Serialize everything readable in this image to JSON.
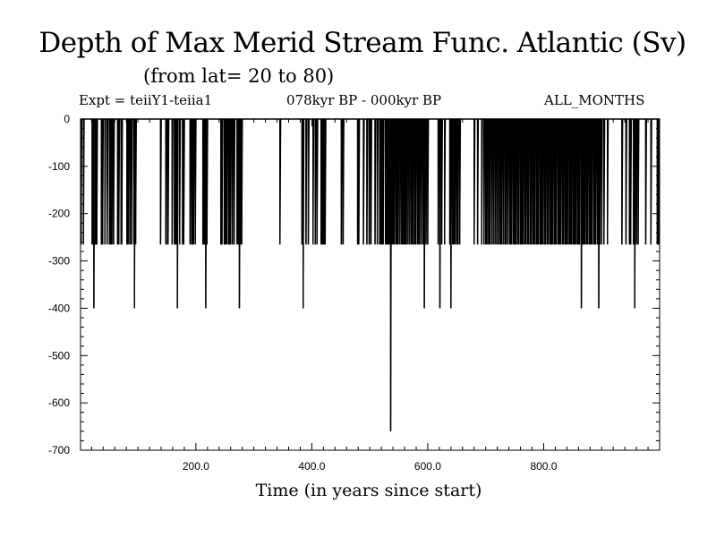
{
  "header": {
    "title": "Depth of Max Merid Stream Func. Atlantic (Sv)",
    "subtitle": "(from lat= 20 to 80)",
    "experiment": "Expt = teiiY1-teiia1",
    "period": "078kyr BP - 000kyr BP",
    "months": "ALL_MONTHS"
  },
  "chart_data": {
    "type": "line",
    "title": "Depth of Max Merid Stream Func. Atlantic (Sv)",
    "xlabel": "Time (in years since start)",
    "ylabel": "",
    "xlim": [
      1,
      1000
    ],
    "ylim": [
      -700,
      0
    ],
    "x_ticks": [
      200,
      400,
      600,
      800
    ],
    "x_tick_labels": [
      "200.0",
      "400.0",
      "600.0",
      "800.0"
    ],
    "y_ticks": [
      0,
      -100,
      -200,
      -300,
      -400,
      -500,
      -600,
      -700
    ],
    "y_tick_labels": [
      "0",
      "-100",
      "-200",
      "-300",
      "-400",
      "-500",
      "-600",
      "-700"
    ],
    "baseline": 0,
    "series": [
      {
        "values_description_note": "",
        "points": [
          [
            2,
            -265
          ],
          [
            6,
            -265
          ],
          [
            21,
            -265
          ],
          [
            23,
            -265
          ],
          [
            24,
            -400
          ],
          [
            26,
            -265
          ],
          [
            28,
            -265
          ],
          [
            29,
            -265
          ],
          [
            37,
            -265
          ],
          [
            38,
            -265
          ],
          [
            39,
            -265
          ],
          [
            43,
            -265
          ],
          [
            47,
            -265
          ],
          [
            51,
            -265
          ],
          [
            53,
            -265
          ],
          [
            55,
            -265
          ],
          [
            58,
            -265
          ],
          [
            65,
            -265
          ],
          [
            66,
            -265
          ],
          [
            67,
            -265
          ],
          [
            71,
            -265
          ],
          [
            72,
            -265
          ],
          [
            81,
            -265
          ],
          [
            83,
            -265
          ],
          [
            86,
            -265
          ],
          [
            89,
            -265
          ],
          [
            93,
            -265
          ],
          [
            94,
            -400
          ],
          [
            96,
            -265
          ],
          [
            139,
            -265
          ],
          [
            148,
            -265
          ],
          [
            151,
            -265
          ],
          [
            152,
            -265
          ],
          [
            159,
            -265
          ],
          [
            163,
            -265
          ],
          [
            164,
            -265
          ],
          [
            166,
            -265
          ],
          [
            168,
            -400
          ],
          [
            172,
            -265
          ],
          [
            177,
            -265
          ],
          [
            179,
            -265
          ],
          [
            190,
            -265
          ],
          [
            193,
            -265
          ],
          [
            194,
            -265
          ],
          [
            196,
            -265
          ],
          [
            199,
            -265
          ],
          [
            212,
            -265
          ],
          [
            213,
            -265
          ],
          [
            215,
            -265
          ],
          [
            217,
            -400
          ],
          [
            219,
            -265
          ],
          [
            243,
            -265
          ],
          [
            244,
            -265
          ],
          [
            245,
            -265
          ],
          [
            249,
            -265
          ],
          [
            251,
            -265
          ],
          [
            253,
            -265
          ],
          [
            256,
            -265
          ],
          [
            257,
            -265
          ],
          [
            259,
            -265
          ],
          [
            260,
            -265
          ],
          [
            263,
            -265
          ],
          [
            266,
            -265
          ],
          [
            271,
            -265
          ],
          [
            273,
            -265
          ],
          [
            275,
            -400
          ],
          [
            277,
            -265
          ],
          [
            279,
            -265
          ],
          [
            345,
            -265
          ],
          [
            383,
            -265
          ],
          [
            385,
            -400
          ],
          [
            390,
            -265
          ],
          [
            394,
            -265
          ],
          [
            402,
            -265
          ],
          [
            406,
            -265
          ],
          [
            409,
            -265
          ],
          [
            416,
            -265
          ],
          [
            418,
            -265
          ],
          [
            419,
            -265
          ],
          [
            421,
            -265
          ],
          [
            423,
            -265
          ],
          [
            451,
            -265
          ],
          [
            454,
            -265
          ],
          [
            479,
            -265
          ],
          [
            481,
            -265
          ],
          [
            489,
            -265
          ],
          [
            495,
            -265
          ],
          [
            499,
            -265
          ],
          [
            502,
            -265
          ],
          [
            509,
            -265
          ],
          [
            513,
            -265
          ],
          [
            517,
            -265
          ],
          [
            519,
            -265
          ],
          [
            521,
            -265
          ],
          [
            523,
            -265
          ],
          [
            527,
            -265
          ],
          [
            529,
            -265
          ],
          [
            531,
            -265
          ],
          [
            533,
            -265
          ],
          [
            535,
            -265
          ],
          [
            536,
            -660
          ],
          [
            538,
            -265
          ],
          [
            540,
            -265
          ],
          [
            542,
            -265
          ],
          [
            545,
            -265
          ],
          [
            547,
            -265
          ],
          [
            549,
            -265
          ],
          [
            552,
            -265
          ],
          [
            555,
            -265
          ],
          [
            557,
            -265
          ],
          [
            559,
            -265
          ],
          [
            561,
            -265
          ],
          [
            563,
            -265
          ],
          [
            566,
            -265
          ],
          [
            569,
            -265
          ],
          [
            572,
            -265
          ],
          [
            574,
            -265
          ],
          [
            577,
            -265
          ],
          [
            579,
            -265
          ],
          [
            582,
            -265
          ],
          [
            584,
            -265
          ],
          [
            586,
            -265
          ],
          [
            589,
            -265
          ],
          [
            592,
            -265
          ],
          [
            594,
            -400
          ],
          [
            597,
            -265
          ],
          [
            600,
            -265
          ],
          [
            618,
            -265
          ],
          [
            621,
            -400
          ],
          [
            624,
            -265
          ],
          [
            629,
            -265
          ],
          [
            638,
            -265
          ],
          [
            640,
            -400
          ],
          [
            643,
            -265
          ],
          [
            645,
            -265
          ],
          [
            647,
            -265
          ],
          [
            650,
            -265
          ],
          [
            652,
            -265
          ],
          [
            655,
            -265
          ],
          [
            680,
            -265
          ],
          [
            686,
            -265
          ],
          [
            693,
            -265
          ],
          [
            697,
            -265
          ],
          [
            700,
            -265
          ],
          [
            702,
            -265
          ],
          [
            705,
            -265
          ],
          [
            707,
            -265
          ],
          [
            710,
            -265
          ],
          [
            713,
            -265
          ],
          [
            716,
            -265
          ],
          [
            719,
            -265
          ],
          [
            722,
            -265
          ],
          [
            725,
            -265
          ],
          [
            727,
            -265
          ],
          [
            730,
            -265
          ],
          [
            733,
            -265
          ],
          [
            735,
            -265
          ],
          [
            738,
            -265
          ],
          [
            741,
            -265
          ],
          [
            743,
            -265
          ],
          [
            745,
            -265
          ],
          [
            748,
            -265
          ],
          [
            750,
            -265
          ],
          [
            752,
            -265
          ],
          [
            755,
            -265
          ],
          [
            757,
            -265
          ],
          [
            760,
            -265
          ],
          [
            762,
            -265
          ],
          [
            764,
            -265
          ],
          [
            767,
            -265
          ],
          [
            769,
            -265
          ],
          [
            772,
            -265
          ],
          [
            774,
            -265
          ],
          [
            777,
            -265
          ],
          [
            779,
            -265
          ],
          [
            782,
            -265
          ],
          [
            784,
            -265
          ],
          [
            787,
            -265
          ],
          [
            789,
            -265
          ],
          [
            791,
            -265
          ],
          [
            794,
            -265
          ],
          [
            796,
            -265
          ],
          [
            798,
            -265
          ],
          [
            801,
            -265
          ],
          [
            803,
            -265
          ],
          [
            806,
            -265
          ],
          [
            808,
            -265
          ],
          [
            811,
            -265
          ],
          [
            813,
            -265
          ],
          [
            815,
            -265
          ],
          [
            818,
            -265
          ],
          [
            820,
            -265
          ],
          [
            822,
            -265
          ],
          [
            825,
            -265
          ],
          [
            827,
            -265
          ],
          [
            829,
            -265
          ],
          [
            832,
            -265
          ],
          [
            834,
            -265
          ],
          [
            837,
            -265
          ],
          [
            839,
            -265
          ],
          [
            841,
            -265
          ],
          [
            844,
            -265
          ],
          [
            846,
            -265
          ],
          [
            848,
            -265
          ],
          [
            851,
            -265
          ],
          [
            853,
            -265
          ],
          [
            855,
            -265
          ],
          [
            858,
            -265
          ],
          [
            860,
            -265
          ],
          [
            862,
            -265
          ],
          [
            865,
            -400
          ],
          [
            867,
            -265
          ],
          [
            869,
            -265
          ],
          [
            871,
            -265
          ],
          [
            874,
            -265
          ],
          [
            876,
            -265
          ],
          [
            879,
            -265
          ],
          [
            881,
            -265
          ],
          [
            883,
            -265
          ],
          [
            886,
            -265
          ],
          [
            888,
            -265
          ],
          [
            890,
            -265
          ],
          [
            893,
            -265
          ],
          [
            895,
            -400
          ],
          [
            897,
            -265
          ],
          [
            900,
            -265
          ],
          [
            904,
            -265
          ],
          [
            910,
            -265
          ],
          [
            935,
            -265
          ],
          [
            942,
            -265
          ],
          [
            948,
            -265
          ],
          [
            950,
            -265
          ],
          [
            955,
            -265
          ],
          [
            957,
            -400
          ],
          [
            960,
            -265
          ],
          [
            963,
            -265
          ],
          [
            976,
            -265
          ],
          [
            985,
            -265
          ],
          [
            996,
            -265
          ],
          [
            998,
            -265
          ]
        ]
      }
    ]
  }
}
